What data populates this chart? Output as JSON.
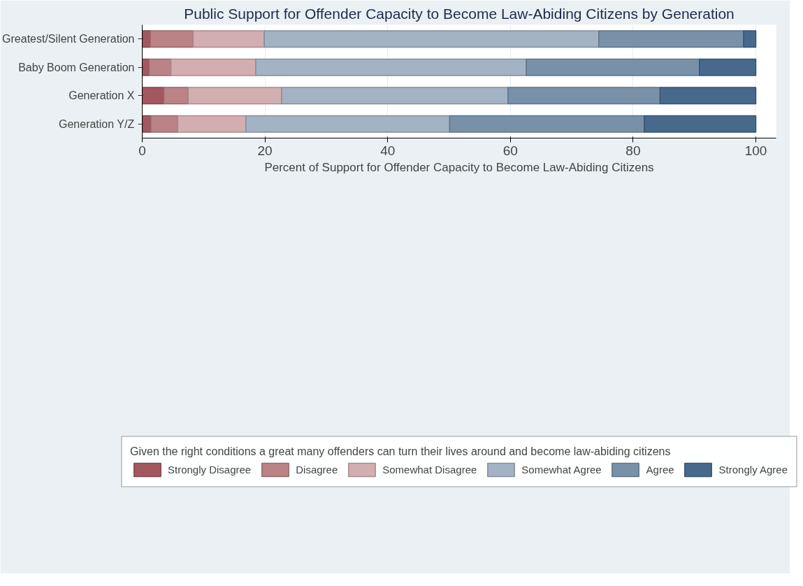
{
  "chart_data": {
    "type": "bar",
    "orientation": "horizontal",
    "stacked": true,
    "title": "Public Support for Offender Capacity to Become Law-Abiding Citizens by Generation",
    "xlabel": "Percent of Support for Offender Capacity to Become Law-Abiding Citizens",
    "legend_title": "Given the right conditions a great many offenders can turn their lives around and become law-abiding citizens",
    "categories": [
      "Greatest/Silent Generation",
      "Baby Boom Generation",
      "Generation X",
      "Generation Y/Z"
    ],
    "series": [
      {
        "name": "Strongly Disagree",
        "color": "#a3585f",
        "values": [
          1.3,
          1.1,
          3.5,
          1.4
        ]
      },
      {
        "name": "Disagree",
        "color": "#bb8385",
        "values": [
          7.0,
          3.6,
          4.0,
          4.4
        ]
      },
      {
        "name": "Somewhat Disagree",
        "color": "#d3aeb1",
        "values": [
          11.6,
          13.8,
          15.2,
          11.1
        ]
      },
      {
        "name": "Somewhat Agree",
        "color": "#a3b3c4",
        "values": [
          54.5,
          44.1,
          36.9,
          33.2
        ]
      },
      {
        "name": "Agree",
        "color": "#7891a9",
        "values": [
          23.6,
          28.2,
          24.8,
          31.7
        ]
      },
      {
        "name": "Strongly Agree",
        "color": "#46698c",
        "values": [
          2.0,
          9.2,
          15.6,
          18.2
        ]
      }
    ],
    "xlim": [
      0,
      103.3
    ],
    "xticks": [
      0,
      20,
      40,
      60,
      80,
      100
    ],
    "grid": "x",
    "legend": "bottom"
  }
}
